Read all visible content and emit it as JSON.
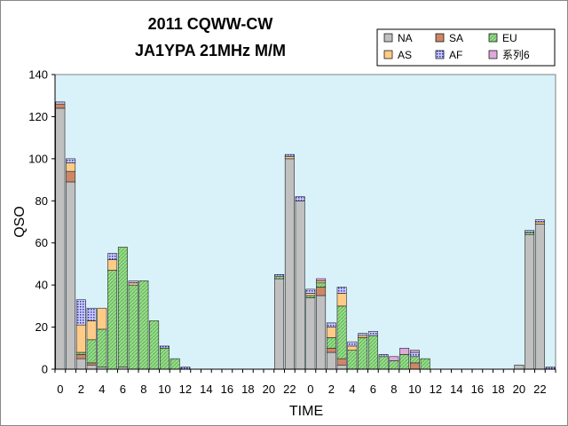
{
  "chart_data": {
    "type": "bar",
    "stacked": true,
    "title": "2011 CQWW-CW",
    "subtitle": "JA1YPA  21MHz  M/M",
    "xlabel": "TIME",
    "ylabel": "QSO",
    "ylim": [
      0,
      140
    ],
    "yticks": [
      0,
      20,
      40,
      60,
      80,
      100,
      120,
      140
    ],
    "grid": false,
    "legend_position": "top-right",
    "categories": [
      "0",
      "1",
      "2",
      "3",
      "4",
      "5",
      "6",
      "7",
      "8",
      "9",
      "10",
      "11",
      "12",
      "13",
      "14",
      "15",
      "16",
      "17",
      "18",
      "19",
      "20",
      "21",
      "22",
      "23",
      "0",
      "1",
      "2",
      "3",
      "4",
      "5",
      "6",
      "7",
      "8",
      "9",
      "10",
      "11",
      "12",
      "13",
      "14",
      "15",
      "16",
      "17",
      "18",
      "19",
      "20",
      "21",
      "22",
      "23"
    ],
    "tick_labels": [
      "0",
      "2",
      "4",
      "6",
      "8",
      "10",
      "12",
      "14",
      "16",
      "18",
      "20",
      "22",
      "0",
      "2",
      "4",
      "6",
      "8",
      "10",
      "12",
      "14",
      "16",
      "18",
      "20",
      "22"
    ],
    "series": [
      {
        "name": "NA",
        "color": "#c0c0c0",
        "pattern": "solid",
        "values": [
          124,
          89,
          5,
          2,
          1,
          0,
          1,
          0,
          0,
          0,
          0,
          0,
          0,
          0,
          0,
          0,
          0,
          0,
          0,
          0,
          0,
          43,
          100,
          80,
          34,
          35,
          8,
          2,
          0,
          0,
          0,
          0,
          0,
          0,
          0,
          0,
          0,
          0,
          0,
          0,
          0,
          0,
          0,
          0,
          2,
          64,
          69,
          0
        ]
      },
      {
        "name": "SA",
        "color": "#cc8866",
        "pattern": "solid",
        "values": [
          2,
          5,
          2,
          1,
          0,
          0,
          0,
          0,
          0,
          0,
          0,
          0,
          0,
          0,
          0,
          0,
          0,
          0,
          0,
          0,
          0,
          0,
          0,
          0,
          0,
          4,
          2,
          3,
          0,
          0,
          0,
          0,
          0,
          0,
          3,
          0,
          0,
          0,
          0,
          0,
          0,
          0,
          0,
          0,
          0,
          0,
          0,
          0
        ]
      },
      {
        "name": "EU",
        "color": "#99dd88",
        "pattern": "hatch",
        "values": [
          0,
          0,
          1,
          11,
          18,
          47,
          57,
          40,
          42,
          23,
          10,
          5,
          0,
          0,
          0,
          0,
          0,
          0,
          0,
          0,
          0,
          1,
          0,
          0,
          1,
          2,
          5,
          25,
          9,
          15,
          16,
          6,
          4,
          7,
          3,
          5,
          0,
          0,
          0,
          0,
          0,
          0,
          0,
          0,
          0,
          1,
          0,
          0
        ]
      },
      {
        "name": "AS",
        "color": "#ffcc88",
        "pattern": "solid",
        "values": [
          0,
          4,
          13,
          9,
          10,
          5,
          0,
          1,
          0,
          0,
          0,
          0,
          0,
          0,
          0,
          0,
          0,
          0,
          0,
          0,
          0,
          0,
          1,
          0,
          1,
          1,
          5,
          6,
          2,
          1,
          0,
          0,
          0,
          0,
          0,
          0,
          0,
          0,
          0,
          0,
          0,
          0,
          0,
          0,
          0,
          0,
          1,
          0
        ]
      },
      {
        "name": "AF",
        "color": "#9999ee",
        "pattern": "dots",
        "values": [
          1,
          2,
          12,
          6,
          0,
          3,
          0,
          1,
          0,
          0,
          1,
          0,
          1,
          0,
          0,
          0,
          0,
          0,
          0,
          0,
          0,
          1,
          1,
          2,
          2,
          0,
          2,
          3,
          2,
          1,
          2,
          1,
          0,
          0,
          2,
          0,
          0,
          0,
          0,
          0,
          0,
          0,
          0,
          0,
          0,
          1,
          1,
          1
        ]
      },
      {
        "name": "系列6",
        "color": "#ddaadd",
        "pattern": "solid",
        "values": [
          0,
          0,
          0,
          0,
          0,
          0,
          0,
          0,
          0,
          0,
          0,
          0,
          0,
          0,
          0,
          0,
          0,
          0,
          0,
          0,
          0,
          0,
          0,
          0,
          0,
          1,
          0,
          0,
          0,
          0,
          0,
          0,
          2,
          3,
          1,
          0,
          0,
          0,
          0,
          0,
          0,
          0,
          0,
          0,
          0,
          0,
          0,
          0
        ]
      }
    ]
  }
}
